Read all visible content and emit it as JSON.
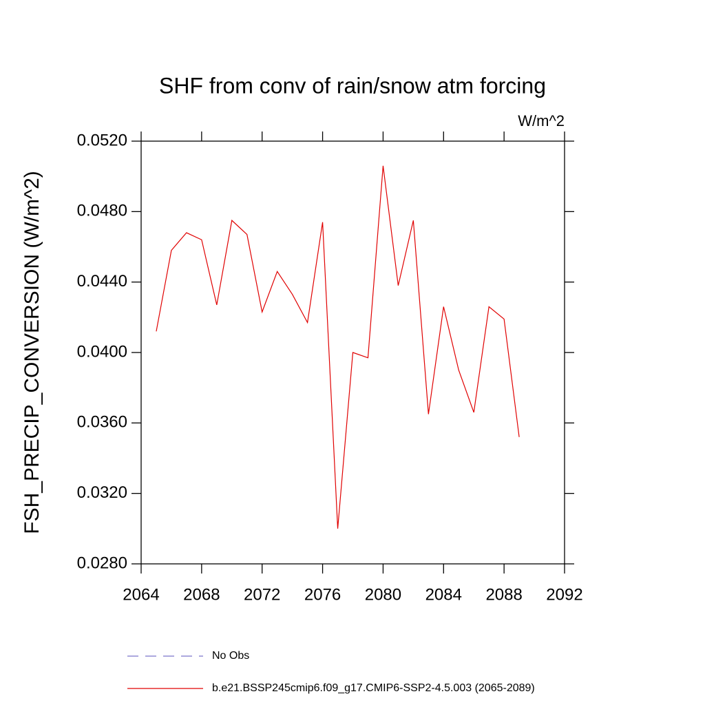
{
  "chart_data": {
    "type": "line",
    "title": "SHF from conv of rain/snow atm forcing",
    "units": "W/m^2",
    "y_label": "FSH_PRECIP_CONVERSION  (W/m^2)",
    "x": [
      2065,
      2066,
      2067,
      2068,
      2069,
      2070,
      2071,
      2072,
      2073,
      2074,
      2075,
      2076,
      2077,
      2078,
      2079,
      2080,
      2081,
      2082,
      2083,
      2084,
      2085,
      2086,
      2087,
      2088,
      2089
    ],
    "series": [
      {
        "name": "No Obs",
        "color": "#7b74c9",
        "dashed": true,
        "values": [
          null,
          null,
          null,
          null,
          null,
          null,
          null,
          null,
          null,
          null,
          null,
          null,
          null,
          null,
          null,
          null,
          null,
          null,
          null,
          null,
          null,
          null,
          null,
          null,
          null
        ]
      },
      {
        "name": "b.e21.BSSP245cmip6.f09_g17.CMIP6-SSP2-4.5.003 (2065-2089)",
        "color": "#e00000",
        "dashed": false,
        "values": [
          0.0412,
          0.0458,
          0.0468,
          0.0464,
          0.0427,
          0.0475,
          0.0467,
          0.0423,
          0.0446,
          0.0433,
          0.0417,
          0.0474,
          0.03,
          0.04,
          0.0397,
          0.0506,
          0.0438,
          0.0475,
          0.0365,
          0.0426,
          0.039,
          0.0366,
          0.0426,
          0.0419,
          0.0352
        ]
      }
    ],
    "xlim": [
      2064,
      2092
    ],
    "xticks": [
      2064,
      2068,
      2072,
      2076,
      2080,
      2084,
      2088,
      2092
    ],
    "ylim": [
      0.028,
      0.052
    ],
    "yticks": [
      {
        "value": 0.028,
        "label": "0.0280"
      },
      {
        "value": 0.032,
        "label": "0.0320"
      },
      {
        "value": 0.036,
        "label": "0.0360"
      },
      {
        "value": 0.04,
        "label": "0.0400"
      },
      {
        "value": 0.044,
        "label": "0.0440"
      },
      {
        "value": 0.048,
        "label": "0.0480"
      },
      {
        "value": 0.052,
        "label": "0.0520"
      }
    ],
    "grid": false
  }
}
